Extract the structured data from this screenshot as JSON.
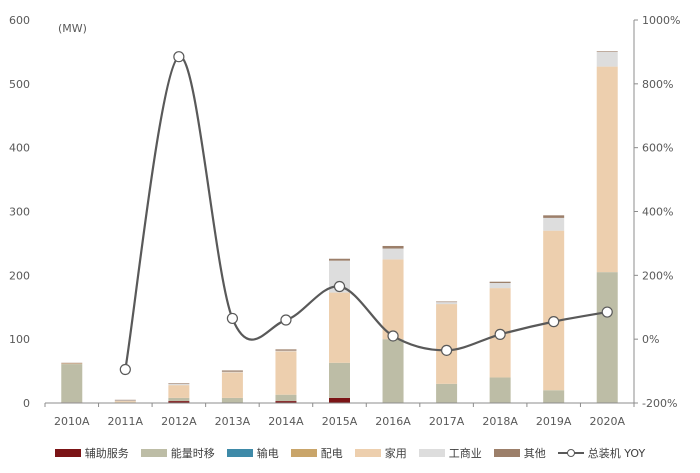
{
  "chart_data": {
    "type": "bar",
    "stacked": true,
    "unit_label": "(MW)",
    "categories": [
      "2010A",
      "2011A",
      "2012A",
      "2013A",
      "2014A",
      "2015A",
      "2016A",
      "2017A",
      "2018A",
      "2019A",
      "2020A"
    ],
    "series": [
      {
        "name": "辅助服务",
        "color": "#7B1416",
        "values": [
          1,
          0,
          3,
          0,
          3,
          8,
          0,
          0,
          0,
          0,
          0
        ]
      },
      {
        "name": "能量时移",
        "color": "#BDBDA6",
        "values": [
          60,
          1,
          5,
          8,
          10,
          55,
          100,
          30,
          40,
          20,
          205
        ]
      },
      {
        "name": "输电",
        "color": "#3E8AA8",
        "values": [
          0,
          0,
          0,
          0,
          0,
          0,
          0,
          0,
          0,
          0,
          0
        ]
      },
      {
        "name": "配电",
        "color": "#C9A56A",
        "values": [
          0,
          0,
          0,
          0,
          0,
          0,
          0,
          0,
          0,
          0,
          0
        ]
      },
      {
        "name": "家用",
        "color": "#EDCFAE",
        "values": [
          1,
          2,
          20,
          40,
          68,
          110,
          125,
          125,
          140,
          250,
          322
        ]
      },
      {
        "name": "工商业",
        "color": "#DDDDDD",
        "values": [
          0,
          1,
          2,
          1,
          1,
          50,
          17,
          3,
          8,
          20,
          23
        ]
      },
      {
        "name": "其他",
        "color": "#9C7F6A",
        "values": [
          1,
          1,
          1,
          2,
          2,
          3,
          4,
          1,
          2,
          4,
          1
        ]
      }
    ],
    "line_series": {
      "name": "总装机 YOY",
      "color": "#595959",
      "values": [
        null,
        -95,
        885,
        65,
        60,
        165,
        10,
        -35,
        15,
        55,
        85
      ]
    },
    "ylim": [
      0,
      600
    ],
    "yticks": [
      "0",
      "100",
      "200",
      "300",
      "400",
      "500",
      "600"
    ],
    "y2lim": [
      -200,
      1000
    ],
    "y2ticks": [
      "-200%",
      "0%",
      "200%",
      "400%",
      "600%",
      "800%",
      "1000%"
    ],
    "legend_position": "bottom",
    "grid": false
  }
}
